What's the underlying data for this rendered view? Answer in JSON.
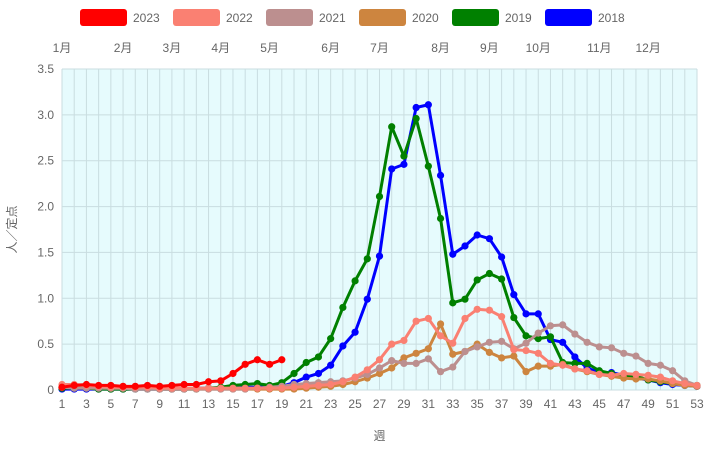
{
  "chart_data": {
    "type": "line",
    "xlabel": "週",
    "ylabel": "人／定点",
    "ylim": [
      0,
      3.5
    ],
    "xlim": [
      1,
      53
    ],
    "yticks": [
      "0",
      "0.5",
      "1.0",
      "1.5",
      "2.0",
      "2.5",
      "3.0",
      "3.5"
    ],
    "x_tick_labels": [
      "1",
      "3",
      "5",
      "7",
      "9",
      "11",
      "13",
      "15",
      "17",
      "19",
      "21",
      "23",
      "25",
      "27",
      "29",
      "31",
      "33",
      "35",
      "37",
      "39",
      "41",
      "43",
      "45",
      "47",
      "49",
      "51",
      "53"
    ],
    "month_labels": [
      {
        "label": "1月",
        "week": 1
      },
      {
        "label": "2月",
        "week": 6
      },
      {
        "label": "3月",
        "week": 10
      },
      {
        "label": "4月",
        "week": 14
      },
      {
        "label": "5月",
        "week": 18
      },
      {
        "label": "6月",
        "week": 23
      },
      {
        "label": "7月",
        "week": 27
      },
      {
        "label": "8月",
        "week": 32
      },
      {
        "label": "9月",
        "week": 36
      },
      {
        "label": "10月",
        "week": 40
      },
      {
        "label": "11月",
        "week": 45
      },
      {
        "label": "12月",
        "week": 49
      }
    ],
    "grid": true,
    "legend_position": "top",
    "series": [
      {
        "name": "2023",
        "color": "#ff0000",
        "values": [
          0.03,
          0.05,
          0.06,
          0.05,
          0.05,
          0.04,
          0.04,
          0.05,
          0.04,
          0.05,
          0.06,
          0.06,
          0.09,
          0.1,
          0.18,
          0.28,
          0.33,
          0.28,
          0.33
        ]
      },
      {
        "name": "2022",
        "color": "#fa8072",
        "values": [
          0.06,
          0.06,
          0.05,
          0.04,
          0.03,
          0.03,
          0.03,
          0.03,
          0.02,
          0.02,
          0.02,
          0.02,
          0.02,
          0.02,
          0.02,
          0.02,
          0.02,
          0.02,
          0.02,
          0.03,
          0.04,
          0.05,
          0.06,
          0.09,
          0.14,
          0.22,
          0.33,
          0.5,
          0.54,
          0.75,
          0.78,
          0.59,
          0.51,
          0.78,
          0.88,
          0.87,
          0.8,
          0.44,
          0.43,
          0.4,
          0.29,
          0.27,
          0.23,
          0.21,
          0.17,
          0.16,
          0.18,
          0.17,
          0.16,
          0.14,
          0.1,
          0.07,
          0.05
        ]
      },
      {
        "name": "2021",
        "color": "#bc8f8f",
        "values": [
          0.03,
          0.02,
          0.02,
          0.02,
          0.02,
          0.02,
          0.01,
          0.01,
          0.01,
          0.01,
          0.01,
          0.01,
          0.01,
          0.01,
          0.01,
          0.01,
          0.02,
          0.03,
          0.04,
          0.06,
          0.07,
          0.08,
          0.09,
          0.1,
          0.13,
          0.17,
          0.24,
          0.32,
          0.29,
          0.29,
          0.34,
          0.2,
          0.25,
          0.42,
          0.47,
          0.52,
          0.53,
          0.45,
          0.51,
          0.62,
          0.7,
          0.71,
          0.61,
          0.52,
          0.47,
          0.46,
          0.4,
          0.37,
          0.29,
          0.27,
          0.21,
          0.1,
          0.05
        ]
      },
      {
        "name": "2020",
        "color": "#cd853f",
        "values": [
          0.03,
          0.03,
          0.03,
          0.03,
          0.02,
          0.02,
          0.02,
          0.02,
          0.01,
          0.01,
          0.01,
          0.01,
          0.01,
          0.01,
          0.01,
          0.01,
          0.01,
          0.01,
          0.01,
          0.01,
          0.02,
          0.03,
          0.04,
          0.06,
          0.09,
          0.13,
          0.18,
          0.24,
          0.35,
          0.4,
          0.45,
          0.72,
          0.39,
          0.42,
          0.5,
          0.41,
          0.35,
          0.37,
          0.2,
          0.26,
          0.26,
          0.28,
          0.23,
          0.2,
          0.17,
          0.15,
          0.13,
          0.12,
          0.12,
          0.1,
          0.07,
          0.05,
          0.04
        ]
      },
      {
        "name": "2019",
        "color": "#008000",
        "values": [
          0.02,
          0.02,
          0.02,
          0.01,
          0.01,
          0.01,
          0.01,
          0.01,
          0.01,
          0.01,
          0.01,
          0.01,
          0.02,
          0.03,
          0.05,
          0.06,
          0.07,
          0.05,
          0.08,
          0.18,
          0.3,
          0.36,
          0.56,
          0.9,
          1.19,
          1.43,
          2.11,
          2.87,
          2.55,
          2.96,
          2.44,
          1.87,
          0.95,
          0.99,
          1.2,
          1.27,
          1.21,
          0.79,
          0.59,
          0.56,
          0.58,
          0.3,
          0.29,
          0.29,
          0.21,
          0.18,
          0.15,
          0.15,
          0.11,
          0.09,
          0.07,
          0.06,
          0.05
        ]
      },
      {
        "name": "2018",
        "color": "#0000ff",
        "values": [
          0.01,
          0.01,
          0.01,
          0.01,
          0.01,
          0.01,
          0.01,
          0.01,
          0.01,
          0.01,
          0.01,
          0.02,
          0.02,
          0.02,
          0.02,
          0.03,
          0.03,
          0.04,
          0.04,
          0.08,
          0.14,
          0.18,
          0.27,
          0.48,
          0.63,
          0.99,
          1.46,
          2.41,
          2.46,
          3.08,
          3.11,
          2.34,
          1.48,
          1.57,
          1.69,
          1.65,
          1.45,
          1.04,
          0.83,
          0.83,
          0.55,
          0.52,
          0.36,
          0.24,
          0.19,
          0.19,
          0.16,
          0.13,
          0.11,
          0.08,
          0.06,
          0.05,
          0.04
        ]
      }
    ]
  }
}
